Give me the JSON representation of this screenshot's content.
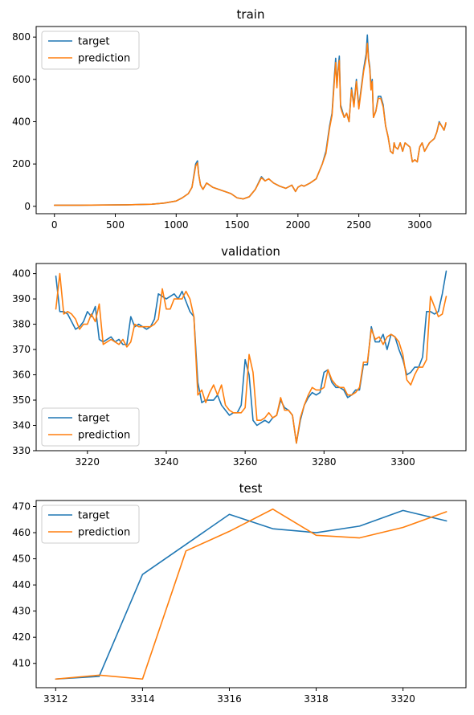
{
  "colors": {
    "target": "#1f77b4",
    "prediction": "#ff7f0e"
  },
  "chart_data": [
    {
      "type": "line",
      "title": "train",
      "xlabel": "",
      "ylabel": "",
      "xlim": [
        -150,
        3380
      ],
      "ylim": [
        -35,
        850
      ],
      "xticks": [
        0,
        500,
        1000,
        1500,
        2000,
        2500,
        3000
      ],
      "yticks": [
        0,
        200,
        400,
        600,
        800
      ],
      "legend": "top-left",
      "grid": false,
      "series": [
        {
          "name": "target",
          "color": "#1f77b4",
          "x": [
            0,
            200,
            400,
            600,
            800,
            900,
            1000,
            1050,
            1100,
            1130,
            1160,
            1175,
            1185,
            1200,
            1220,
            1250,
            1300,
            1350,
            1400,
            1450,
            1500,
            1550,
            1600,
            1650,
            1700,
            1730,
            1760,
            1800,
            1850,
            1900,
            1950,
            1980,
            2000,
            2030,
            2050,
            2100,
            2150,
            2200,
            2230,
            2260,
            2280,
            2300,
            2310,
            2320,
            2330,
            2340,
            2350,
            2360,
            2380,
            2400,
            2420,
            2440,
            2460,
            2480,
            2500,
            2520,
            2540,
            2560,
            2570,
            2580,
            2590,
            2600,
            2610,
            2620,
            2640,
            2660,
            2680,
            2700,
            2720,
            2740,
            2760,
            2780,
            2790,
            2800,
            2820,
            2840,
            2860,
            2880,
            2900,
            2920,
            2940,
            2960,
            2980,
            3000,
            3020,
            3040,
            3060,
            3080,
            3100,
            3120,
            3140,
            3160,
            3180,
            3200,
            3215
          ],
          "y": [
            5,
            5,
            6,
            7,
            10,
            15,
            25,
            40,
            60,
            90,
            200,
            215,
            150,
            100,
            80,
            110,
            90,
            80,
            70,
            60,
            40,
            35,
            45,
            80,
            140,
            120,
            130,
            110,
            95,
            85,
            100,
            70,
            90,
            100,
            95,
            110,
            130,
            200,
            260,
            380,
            440,
            620,
            700,
            570,
            650,
            710,
            480,
            460,
            420,
            440,
            400,
            560,
            480,
            600,
            470,
            560,
            650,
            720,
            810,
            700,
            660,
            560,
            600,
            420,
            450,
            520,
            520,
            480,
            380,
            330,
            260,
            250,
            300,
            280,
            270,
            300,
            260,
            300,
            290,
            280,
            210,
            220,
            210,
            280,
            300,
            260,
            280,
            300,
            310,
            320,
            350,
            400,
            380,
            360,
            390
          ]
        },
        {
          "name": "prediction",
          "color": "#ff7f0e",
          "x": [
            0,
            200,
            400,
            600,
            800,
            900,
            1000,
            1050,
            1100,
            1130,
            1160,
            1175,
            1185,
            1200,
            1220,
            1250,
            1300,
            1350,
            1400,
            1450,
            1500,
            1550,
            1600,
            1650,
            1700,
            1730,
            1760,
            1800,
            1850,
            1900,
            1950,
            1980,
            2000,
            2030,
            2050,
            2100,
            2150,
            2200,
            2230,
            2260,
            2280,
            2300,
            2310,
            2320,
            2330,
            2340,
            2350,
            2360,
            2380,
            2400,
            2420,
            2440,
            2460,
            2480,
            2500,
            2520,
            2540,
            2560,
            2570,
            2580,
            2590,
            2600,
            2610,
            2620,
            2640,
            2660,
            2680,
            2700,
            2720,
            2740,
            2760,
            2780,
            2790,
            2800,
            2820,
            2840,
            2860,
            2880,
            2900,
            2920,
            2940,
            2960,
            2980,
            3000,
            3020,
            3040,
            3060,
            3080,
            3100,
            3120,
            3140,
            3160,
            3180,
            3200,
            3215
          ],
          "y": [
            5,
            5,
            6,
            7,
            10,
            15,
            25,
            40,
            60,
            90,
            190,
            205,
            150,
            100,
            80,
            110,
            90,
            80,
            70,
            60,
            40,
            35,
            45,
            80,
            135,
            120,
            130,
            110,
            95,
            85,
            100,
            70,
            90,
            100,
            95,
            110,
            130,
            200,
            250,
            370,
            430,
            600,
            680,
            560,
            640,
            690,
            470,
            450,
            420,
            440,
            400,
            550,
            470,
            590,
            460,
            550,
            640,
            700,
            770,
            690,
            650,
            550,
            590,
            420,
            450,
            510,
            510,
            470,
            380,
            330,
            260,
            250,
            300,
            280,
            270,
            300,
            260,
            300,
            290,
            280,
            210,
            220,
            210,
            280,
            300,
            260,
            280,
            300,
            310,
            320,
            350,
            395,
            380,
            360,
            395
          ]
        }
      ]
    },
    {
      "type": "line",
      "title": "validation",
      "xlabel": "",
      "ylabel": "",
      "xlim": [
        3207,
        3316
      ],
      "ylim": [
        330,
        404
      ],
      "xticks": [
        3220,
        3240,
        3260,
        3280,
        3300
      ],
      "yticks": [
        330,
        340,
        350,
        360,
        370,
        380,
        390,
        400
      ],
      "legend": "bottom-left",
      "grid": false,
      "series": [
        {
          "name": "target",
          "color": "#1f77b4",
          "x": [
            3212,
            3213,
            3214,
            3215,
            3216,
            3217,
            3218,
            3219,
            3220,
            3221,
            3222,
            3223,
            3224,
            3225,
            3226,
            3227,
            3228,
            3229,
            3230,
            3231,
            3232,
            3233,
            3234,
            3235,
            3236,
            3237,
            3238,
            3239,
            3240,
            3241,
            3242,
            3243,
            3244,
            3245,
            3246,
            3247,
            3248,
            3249,
            3250,
            3251,
            3252,
            3253,
            3254,
            3255,
            3256,
            3257,
            3258,
            3259,
            3260,
            3261,
            3262,
            3263,
            3264,
            3265,
            3266,
            3267,
            3268,
            3269,
            3270,
            3271,
            3272,
            3273,
            3274,
            3275,
            3276,
            3277,
            3278,
            3279,
            3280,
            3281,
            3282,
            3283,
            3284,
            3285,
            3286,
            3287,
            3288,
            3289,
            3290,
            3291,
            3292,
            3293,
            3294,
            3295,
            3296,
            3297,
            3298,
            3299,
            3300,
            3301,
            3302,
            3303,
            3304,
            3305,
            3306,
            3307,
            3308,
            3309,
            3310,
            3311
          ],
          "y": [
            399,
            385,
            385,
            384,
            381,
            378,
            379,
            381,
            385,
            383,
            387,
            374,
            373,
            374,
            375,
            373,
            374,
            372,
            372,
            383,
            379,
            380,
            379,
            378,
            379,
            382,
            392,
            391,
            390,
            391,
            392,
            390,
            393,
            389,
            385,
            383,
            357,
            349,
            350,
            350,
            350,
            352,
            348,
            346,
            344,
            345,
            345,
            348,
            366,
            360,
            342,
            340,
            341,
            342,
            341,
            343,
            344,
            350,
            347,
            346,
            344,
            333,
            342,
            348,
            351,
            353,
            352,
            353,
            361,
            362,
            357,
            355,
            355,
            354,
            351,
            352,
            354,
            354,
            364,
            364,
            379,
            373,
            373,
            376,
            370,
            376,
            375,
            370,
            366,
            360,
            361,
            363,
            363,
            367,
            385,
            385,
            384,
            385,
            392,
            401
          ]
        },
        {
          "name": "prediction",
          "color": "#ff7f0e",
          "x": [
            3212,
            3213,
            3214,
            3215,
            3216,
            3217,
            3218,
            3219,
            3220,
            3221,
            3222,
            3223,
            3224,
            3225,
            3226,
            3227,
            3228,
            3229,
            3230,
            3231,
            3232,
            3233,
            3234,
            3235,
            3236,
            3237,
            3238,
            3239,
            3240,
            3241,
            3242,
            3243,
            3244,
            3245,
            3246,
            3247,
            3248,
            3249,
            3250,
            3251,
            3252,
            3253,
            3254,
            3255,
            3256,
            3257,
            3258,
            3259,
            3260,
            3261,
            3262,
            3263,
            3264,
            3265,
            3266,
            3267,
            3268,
            3269,
            3270,
            3271,
            3272,
            3273,
            3274,
            3275,
            3276,
            3277,
            3278,
            3279,
            3280,
            3281,
            3282,
            3283,
            3284,
            3285,
            3286,
            3287,
            3288,
            3289,
            3290,
            3291,
            3292,
            3293,
            3294,
            3295,
            3296,
            3297,
            3298,
            3299,
            3300,
            3301,
            3302,
            3303,
            3304,
            3305,
            3306,
            3307,
            3308,
            3309,
            3310,
            3311
          ],
          "y": [
            386,
            400,
            384,
            385,
            384,
            382,
            378,
            380,
            380,
            384,
            381,
            388,
            372,
            373,
            374,
            373,
            372,
            374,
            371,
            373,
            380,
            379,
            379,
            379,
            379,
            380,
            382,
            394,
            386,
            386,
            390,
            390,
            390,
            393,
            390,
            383,
            352,
            354,
            349,
            353,
            356,
            352,
            356,
            348,
            346,
            345,
            345,
            345,
            347,
            368,
            361,
            342,
            342,
            343,
            345,
            343,
            344,
            351,
            346,
            346,
            344,
            333,
            343,
            348,
            352,
            355,
            354,
            354,
            355,
            362,
            358,
            356,
            355,
            355,
            352,
            352,
            353,
            355,
            365,
            365,
            378,
            374,
            375,
            372,
            375,
            376,
            375,
            373,
            368,
            358,
            356,
            360,
            363,
            363,
            366,
            391,
            387,
            383,
            384,
            391
          ]
        }
      ]
    },
    {
      "type": "line",
      "title": "test",
      "xlabel": "",
      "ylabel": "",
      "xlim": [
        3311.55,
        3321.45
      ],
      "ylim": [
        400.7,
        472.3
      ],
      "xticks": [
        3312,
        3314,
        3316,
        3318,
        3320
      ],
      "yticks": [
        410,
        420,
        430,
        440,
        450,
        460,
        470
      ],
      "legend": "top-left",
      "grid": false,
      "series": [
        {
          "name": "target",
          "color": "#1f77b4",
          "x": [
            3312,
            3313,
            3314,
            3315,
            3316,
            3317,
            3318,
            3319,
            3320,
            3321
          ],
          "y": [
            404,
            405,
            444,
            455.5,
            467,
            461.5,
            460,
            462.5,
            468.5,
            464.5
          ]
        },
        {
          "name": "prediction",
          "color": "#ff7f0e",
          "x": [
            3312,
            3313,
            3314,
            3315,
            3316,
            3317,
            3318,
            3319,
            3320,
            3321
          ],
          "y": [
            404,
            405.5,
            404,
            453,
            460.5,
            469,
            459,
            458,
            462,
            468
          ]
        }
      ]
    }
  ]
}
